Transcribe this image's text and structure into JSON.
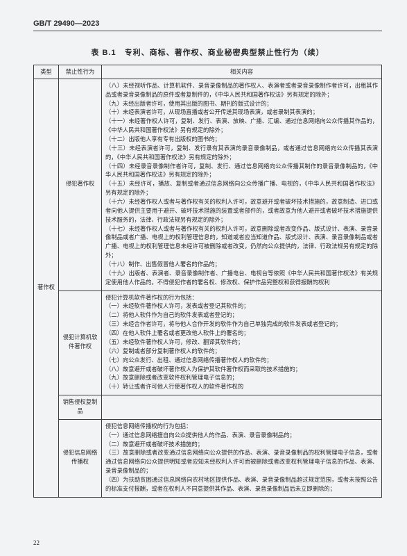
{
  "header": {
    "standard": "GB/T 29490—2023"
  },
  "caption": "表 B.1　专利、商标、著作权、商业秘密典型禁止性行为（续）",
  "table": {
    "headers": {
      "type": "类型",
      "behavior": "禁止性行为",
      "content": "相关内容"
    },
    "rows": [
      {
        "type": "著作权",
        "behavior": "侵犯著作权",
        "content": [
          "（八）未经视听作品、计算机软件、录音录像制品的著作权人、表演者或者录音录像制作者许可，出租其作品或者录音录像制品的原件或者复制件的，《中华人民共和国著作权法》另有规定的除外；",
          "（九）未经出版者许可，使用其出版的图书、期刊的版式设计的；",
          "（十）未经表演者许可，从现场直播或者公开传送其现场表演，或者录制其表演的；",
          "（十一）未经著作权人许可，复制、发行、表演、放映、广播、汇编、通过信息网络向公众传播其作品的，《中华人民共和国著作权法》另有规定的除外；",
          "（十二）出版他人享有专有出版权的图书的；",
          "（十三）未经表演者许可，复制、发行录有其表演的录音录像制品，或者通过信息网络向公众传播其表演的，《中华人民共和国著作权法》另有规定的除外；",
          "（十四）未经录音录像制作者许可，复制、发行、通过信息网络向公众传播其制作的录音录像制品的，《中华人民共和国著作权法》另有规定的除外；",
          "（十五）未经许可，播放、复制或者通过信息网络向公众传播广播、电视的，《中华人民共和国著作权法》另有规定的除外；",
          "（十六）未经著作权人或者与著作权有关的权利人许可，故意避开或者破坏技术措施的，故意制造、进口或者向他人提供主要用于避开、破坏技术措施的装置或者部件的，或者故意为他人避开或者破坏技术措施提供技术服务的，法律、行政法规另有规定的除外；",
          "（十七）未经著作权人或者与著作权有关的权利人许可，故意删除或者改变作品、版式设计、表演、录音录像制品或者广播、电视上的权利管理信息的，知道或者应当知道作品、版式设计、表演、录音录像制品或者广播、电视上的权利管理信息未经许可被删除或者改变，仍然向公众提供的，法律、行政法规另有规定的除外；",
          "（十八）制作、出售假冒他人署名的作品的；",
          "（十九）出版者、表演者、录音录像制作者、广播电台、电视台等依照《中华人民共和国著作权法》有关规定使用他人作品的，不得侵犯作者的署名权、修改权、保护作品完整权和获得报酬的权利"
        ]
      },
      {
        "behavior": "侵犯计算机软件著作权",
        "content": [
          "侵犯计算机软件著作权的行为包括：",
          "（一）未经软件著作权人许可，发表或者登记其软件的；",
          "（二）将他人软件作为自己的软件发表或者登记的；",
          "（三）未经合作者许可，将与他人合作开发的软件作为自己单独完成的软件发表或者登记的；",
          "（四）在他人软件上署名或者更改他人软件上的署名的；",
          "（五）未经软件著作权人许可，修改、翻译其软件的；",
          "（六）复制或者部分复制著作权人的软件的；",
          "（七）向公众发行、出租、通过信息网络传播著作权人的软件的；",
          "（八）故意避开或者破坏著作权人为保护其软件著作权而采取的技术措施的；",
          "（九）故意删除或者改变软件权利管理电子信息的；",
          "（十）转让或者许可他人行使著作权人的软件著作权的"
        ]
      },
      {
        "behavior": "销售侵权复制品",
        "content": []
      },
      {
        "behavior": "侵犯信息网络传播权",
        "content": [
          "侵犯信息网络传播权的行为包括：",
          "（一）通过信息网络擅自向公众提供他人的作品、表演、录音录像制品的；",
          "（二）故意避开或者破坏技术措施的；",
          "（三）故意删除或者改变通过信息网络向公众提供的作品、表演、录音录像制品的权利管理电子信息，或者通过信息网络向公众提供明知或者应知未经权利人许可而被删除或者改变权利管理电子信息的作品、表演、录音录像制品的；",
          "（四）为扶助贫困通过信息网络向农村地区提供作品、表演、录音录像制品超过规定范围，或者未按照公告的标准支付报酬，或者在权利人不同意提供其作品、表演、录音录像制品后未立即删除的；"
        ]
      }
    ]
  },
  "pageNumber": "22"
}
